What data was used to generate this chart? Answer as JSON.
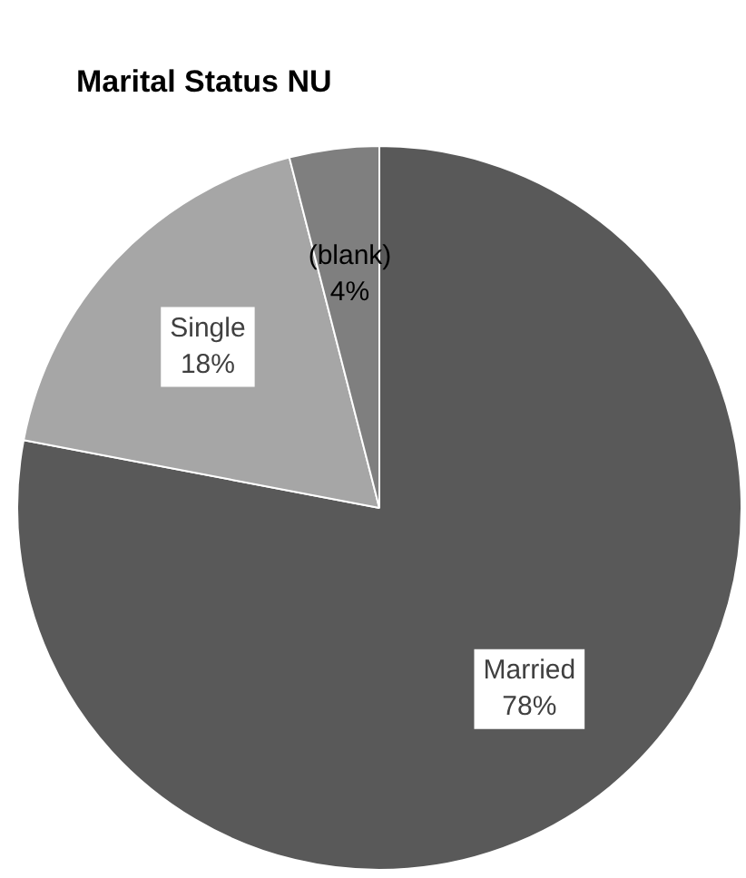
{
  "chart_data": {
    "type": "pie",
    "title": "Marital Status NU",
    "categories": [
      "Married",
      "Single",
      "(blank)"
    ],
    "values": [
      78,
      18,
      4
    ],
    "colors": [
      "#595959",
      "#a6a6a6",
      "#7f7f7f"
    ],
    "value_labels": [
      "78%",
      "18%",
      "4%"
    ],
    "legend": false
  }
}
